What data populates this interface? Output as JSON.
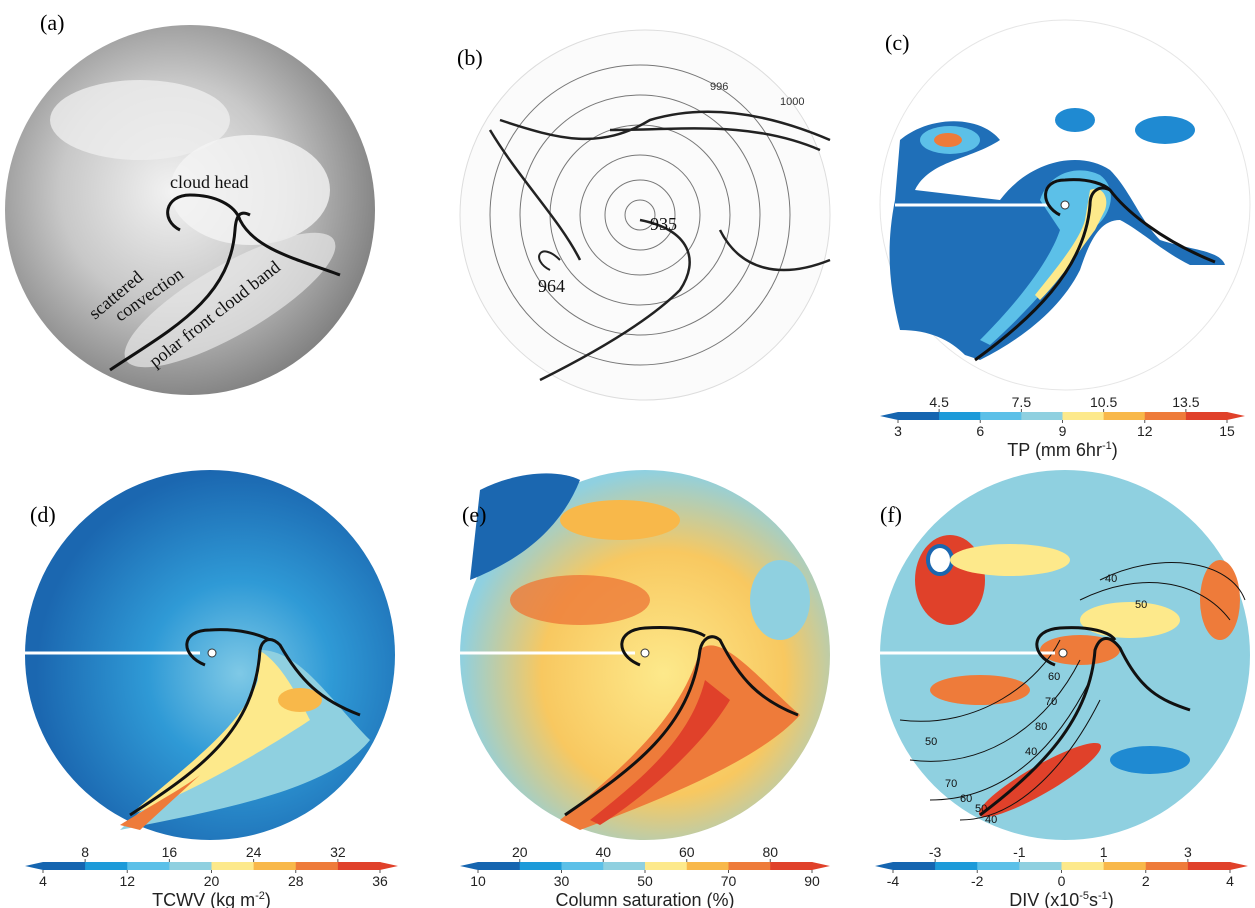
{
  "panels": [
    {
      "label": "(a)",
      "annotations": [
        "cloud head",
        "scattered",
        "convection",
        "polar front cloud band"
      ]
    },
    {
      "label": "(b)",
      "annotations": [
        "1000",
        "996",
        "935",
        "964"
      ]
    },
    {
      "label": "(c)",
      "colorbar": {
        "upper": [
          4.5,
          7.5,
          10.5,
          13.5
        ],
        "lower": [
          3,
          6,
          9,
          12,
          15
        ],
        "title": [
          "TP (mm 6hr",
          "-1",
          ")"
        ]
      }
    },
    {
      "label": "(d)",
      "colorbar": {
        "upper": [
          8,
          16,
          24,
          32
        ],
        "lower": [
          4,
          12,
          20,
          28,
          36
        ],
        "title": [
          "TCWV (kg m",
          "-2",
          ")"
        ]
      }
    },
    {
      "label": "(e)",
      "colorbar": {
        "upper": [
          20,
          40,
          60,
          80
        ],
        "lower": [
          10,
          30,
          50,
          70,
          90
        ],
        "title": [
          "Column saturation (%)"
        ]
      }
    },
    {
      "label": "(f)",
      "colorbar": {
        "upper": [
          -3,
          -1,
          1,
          3
        ],
        "lower": [
          -4,
          -2,
          0,
          2,
          4
        ],
        "title": [
          "DIV (x10",
          "-5",
          "s",
          "-1",
          ")"
        ]
      },
      "contour_labels": [
        "40",
        "50",
        "60",
        "70",
        "80",
        "40",
        "50",
        "70",
        "60",
        "50",
        "40"
      ]
    }
  ]
}
